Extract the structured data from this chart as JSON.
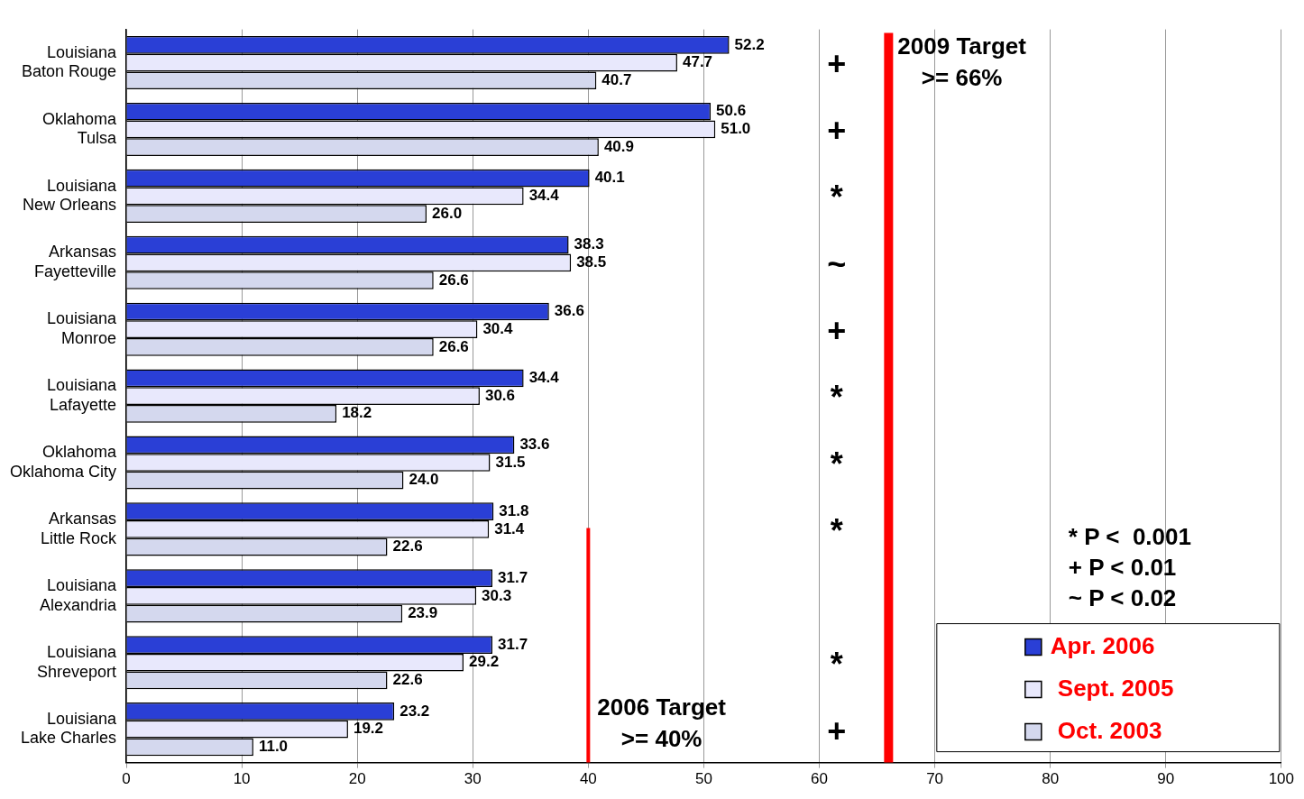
{
  "chart_data": {
    "type": "bar",
    "orientation": "horizontal",
    "categories": [
      "Louisiana\nBaton Rouge",
      "Oklahoma\nTulsa",
      "Louisiana\nNew Orleans",
      "Arkansas\nFayetteville",
      "Louisiana\nMonroe",
      "Louisiana\nLafayette",
      "Oklahoma\nOklahoma City",
      "Arkansas\nLittle Rock",
      "Louisiana\nAlexandria",
      "Louisiana\nShreveport",
      "Louisiana\nLake Charles"
    ],
    "series": [
      {
        "name": "Apr. 2006",
        "color": "#2a3fd6",
        "values": [
          52.2,
          50.6,
          40.1,
          38.3,
          36.6,
          34.4,
          33.6,
          31.8,
          31.7,
          31.7,
          23.2
        ],
        "value_labels": [
          "52.2",
          "50.6",
          "40.1",
          "38.3",
          "36.6",
          "34.4",
          "33.6",
          "31.8",
          "31.7",
          "31.7",
          "23.2"
        ]
      },
      {
        "name": "Sept. 2005",
        "color": "#e8e8fc",
        "values": [
          47.7,
          51.0,
          34.4,
          38.5,
          30.4,
          30.6,
          31.5,
          31.4,
          30.3,
          29.2,
          19.2
        ],
        "value_labels": [
          "47.7",
          "51.0",
          "34.4",
          "38.5",
          "30.4",
          "30.6",
          "31.5",
          "31.4",
          "30.3",
          "29.2",
          "19.2"
        ]
      },
      {
        "name": "Oct. 2003",
        "color": "#d4d8ee",
        "values": [
          40.7,
          40.9,
          26.0,
          26.6,
          26.6,
          18.2,
          24.0,
          22.6,
          23.9,
          22.6,
          11.0
        ],
        "value_labels": [
          "40.7",
          "40.9",
          "26.0",
          "26.6",
          "26.6",
          "18.2",
          "24.0",
          "22.6",
          "23.9",
          "22.6",
          "11.0"
        ]
      }
    ],
    "xlim": [
      0,
      100
    ],
    "xticks": [
      0,
      10,
      20,
      30,
      40,
      50,
      60,
      70,
      80,
      90,
      100
    ],
    "grid": "x",
    "legend": "bottom right",
    "ref_lines": [
      {
        "axis": "x",
        "value": 40,
        "label": "2006 Target\n>= 40%",
        "color": "#ff0000"
      },
      {
        "axis": "x",
        "value": 66,
        "label": "2009 Target\n>= 66%",
        "color": "#ff0000"
      }
    ],
    "annotations": [
      "+",
      "+",
      "*",
      "~",
      "+",
      "*",
      "*",
      "*",
      "*",
      "+",
      "* P <  0.001",
      "+ P < 0.01",
      "~ P < 0.02"
    ]
  }
}
